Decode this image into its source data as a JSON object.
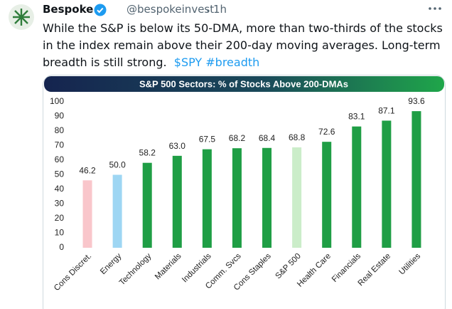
{
  "post": {
    "author": "Bespoke",
    "handle": "@bespokeinvest",
    "time": "1h",
    "body": "While the S&P is below its 50-DMA, more than two-thirds of the stocks in the index remain above their 200-day moving averages.  Long-term breadth is still strong.",
    "tags": [
      "$SPY",
      "#breadth"
    ]
  },
  "chart_data": {
    "type": "bar",
    "title": "S&P 500 Sectors: % of Stocks Above 200-DMAs",
    "categories": [
      "Cons Discret.",
      "Energy",
      "Technology",
      "Materials",
      "Industrials",
      "Comm. Svcs",
      "Cons Staples",
      "S&P 500",
      "Health Care",
      "Financials",
      "Real Estate",
      "Utilities"
    ],
    "values": [
      46.2,
      50.0,
      58.2,
      63.0,
      67.5,
      68.2,
      68.4,
      68.8,
      72.6,
      83.1,
      87.1,
      93.6
    ],
    "value_labels": [
      "46.2",
      "50.0",
      "58.2",
      "63.0",
      "67.5",
      "68.2",
      "68.4",
      "68.8",
      "72.6",
      "83.1",
      "87.1",
      "93.6"
    ],
    "colors": [
      "#f9c6cb",
      "#9ed6f3",
      "#1f9e45",
      "#1f9e45",
      "#1f9e45",
      "#1f9e45",
      "#1f9e45",
      "#cbedc9",
      "#1f9e45",
      "#1f9e45",
      "#1f9e45",
      "#1f9e45"
    ],
    "ylim": [
      0,
      100
    ],
    "yticks": [
      0,
      10,
      20,
      30,
      40,
      50,
      60,
      70,
      80,
      90,
      100
    ],
    "grid": false
  }
}
